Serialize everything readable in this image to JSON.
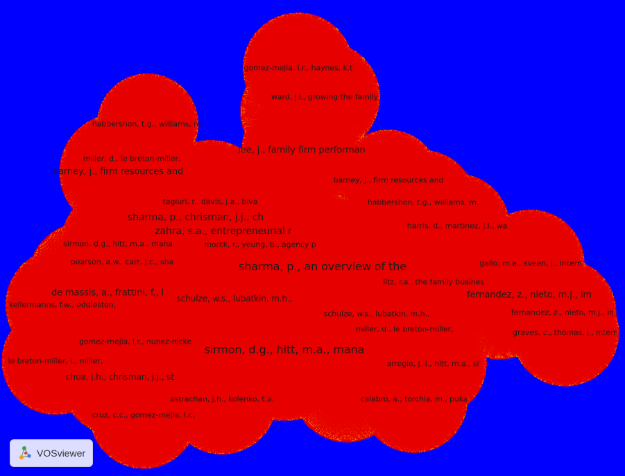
{
  "app": {
    "brand": "VOSviewer",
    "brand_icon": "vosviewer-logo-icon"
  },
  "colors": {
    "background": "#0000ff",
    "low": "#00ff00",
    "mid": "#ffff00",
    "high": "#ff0000"
  },
  "density_map": {
    "view": "density visualization",
    "items": [
      {
        "label": "gomez-mejia, l.r., haynes, k.t",
        "weight": 0.45
      },
      {
        "label": "ward, j.l., growing the family",
        "weight": 0.45
      },
      {
        "label": "habbershon, t.g., williams, m.",
        "weight": 0.3
      },
      {
        "label": "lee, j., family firm performan",
        "weight": 0.6
      },
      {
        "label": "miller, d., le breton-miller,",
        "weight": 0.3
      },
      {
        "label": "barney, j., firm resources and",
        "weight": 0.55
      },
      {
        "label": "barney, j., firm resources and",
        "weight": 0.3
      },
      {
        "label": "tagiuri, r., davis, j.a., biva",
        "weight": 0.65
      },
      {
        "label": "habbershon, t.g., williams, m.",
        "weight": 0.35
      },
      {
        "label": "sharma, p., chrisman, j.j., ch",
        "weight": 0.85
      },
      {
        "label": "zahra, s.a., entrepreneurial r",
        "weight": 0.6
      },
      {
        "label": "harris, d., martinez, j.l., wa",
        "weight": 0.35
      },
      {
        "label": "sirmon, d.g., hitt, m.a., mana",
        "weight": 0.5
      },
      {
        "label": "morck, r., yeung, b., agency p",
        "weight": 0.5
      },
      {
        "label": "sharma, p., an overview of the",
        "weight": 1.0
      },
      {
        "label": "pearson, a.w., carr, j.c., sha",
        "weight": 0.45
      },
      {
        "label": "gallo, m.a., sveen, j., intern",
        "weight": 0.4
      },
      {
        "label": "litz, r.a., the family busines",
        "weight": 0.6
      },
      {
        "label": "de massis, a., frattini, f., l",
        "weight": 0.55
      },
      {
        "label": "fernandez, z., nieto, m.j., im",
        "weight": 0.7
      },
      {
        "label": "schulze, w.s., lubatkin, m.h.,",
        "weight": 0.6
      },
      {
        "label": "kellermanns, f.w., eddleston,",
        "weight": 0.5
      },
      {
        "label": "schulze, w.s., lubatkin, m.h.,",
        "weight": 0.5
      },
      {
        "label": "fernandez, z., nieto, m.j., in",
        "weight": 0.4
      },
      {
        "label": "miller, d., le breton-miller,",
        "weight": 0.5
      },
      {
        "label": "graves, c., thomas, j., intern",
        "weight": 0.4
      },
      {
        "label": "gomez-mejia, l.r., nunez-nicke",
        "weight": 0.5
      },
      {
        "label": "sirmon, d.g., hitt, m.a., mana",
        "weight": 0.95
      },
      {
        "label": "le breton-miller, i., miller,",
        "weight": 0.4
      },
      {
        "label": "arregle, j.-l., hitt, m.a., si",
        "weight": 0.4
      },
      {
        "label": "chua, j.h., chrisman, j.j., st",
        "weight": 0.6
      },
      {
        "label": "astrachan, j.h., kolenko, t.a.",
        "weight": 0.45
      },
      {
        "label": "calabro, a., torchia, m., puka",
        "weight": 0.4
      },
      {
        "label": "cruz, c.c., gomez-mejia, l.r.,",
        "weight": 0.4
      }
    ]
  }
}
